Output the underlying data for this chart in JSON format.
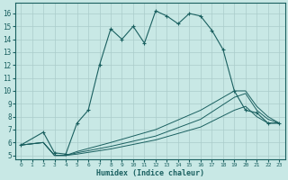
{
  "xlabel": "Humidex (Indice chaleur)",
  "background_color": "#c8e8e5",
  "grid_color": "#aaccca",
  "line_color": "#1a6060",
  "xlim": [
    -0.5,
    23.5
  ],
  "ylim": [
    4.7,
    16.8
  ],
  "yticks": [
    5,
    6,
    7,
    8,
    9,
    10,
    11,
    12,
    13,
    14,
    15,
    16
  ],
  "xticks": [
    0,
    1,
    2,
    3,
    4,
    5,
    6,
    7,
    8,
    9,
    10,
    11,
    12,
    13,
    14,
    15,
    16,
    17,
    18,
    19,
    20,
    21,
    22,
    23
  ],
  "main_x": [
    0,
    2,
    3,
    4,
    5,
    6,
    7,
    8,
    9,
    10,
    11,
    12,
    13,
    14,
    15,
    16,
    17,
    18,
    19,
    20,
    21,
    22,
    23
  ],
  "main_y": [
    5.8,
    6.8,
    5.2,
    5.1,
    7.5,
    8.5,
    12.0,
    14.8,
    14.0,
    15.0,
    13.7,
    16.2,
    15.8,
    15.2,
    16.0,
    15.8,
    14.7,
    13.2,
    10.0,
    8.5,
    8.3,
    7.5,
    7.5
  ],
  "line1_x": [
    0,
    2,
    3,
    4,
    5,
    8,
    12,
    16,
    19,
    20,
    21,
    22,
    23
  ],
  "line1_y": [
    5.8,
    6.0,
    5.0,
    5.0,
    5.1,
    5.5,
    6.2,
    7.2,
    8.5,
    8.8,
    8.0,
    7.5,
    7.5
  ],
  "line2_x": [
    0,
    2,
    3,
    4,
    5,
    8,
    12,
    16,
    19,
    20,
    21,
    22,
    23
  ],
  "line2_y": [
    5.8,
    6.0,
    5.0,
    5.0,
    5.2,
    5.7,
    6.5,
    7.8,
    9.5,
    9.8,
    8.5,
    7.8,
    7.5
  ],
  "line3_x": [
    0,
    2,
    3,
    4,
    5,
    8,
    12,
    16,
    19,
    20,
    21,
    22,
    23
  ],
  "line3_y": [
    5.8,
    6.0,
    5.0,
    5.0,
    5.3,
    6.0,
    7.0,
    8.5,
    10.0,
    10.0,
    8.8,
    8.0,
    7.5
  ]
}
